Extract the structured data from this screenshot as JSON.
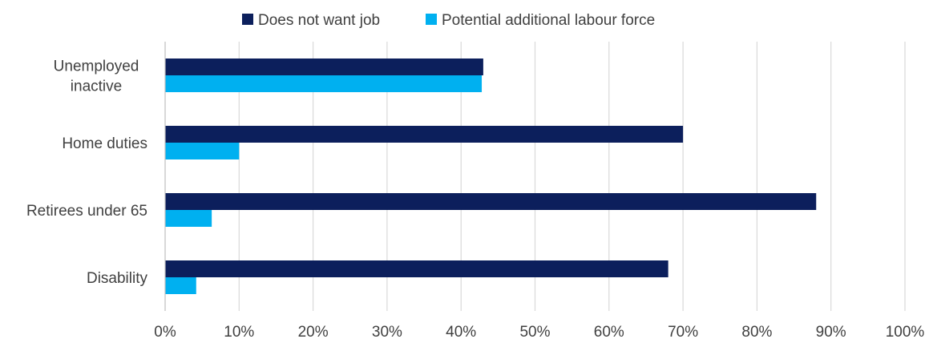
{
  "chart_data": {
    "type": "bar",
    "orientation": "horizontal",
    "categories": [
      [
        "Unemployed",
        "inactive"
      ],
      [
        "Home duties"
      ],
      [
        "Retirees under 65"
      ],
      [
        "Disability"
      ]
    ],
    "series": [
      {
        "name": "Does not want job",
        "color": "#0c1f5c",
        "values": [
          43,
          70,
          88,
          68
        ]
      },
      {
        "name": "Potential additional labour force",
        "color": "#00b0f0",
        "values": [
          42.8,
          10,
          6.3,
          4.2
        ]
      }
    ],
    "x_ticks": [
      "0%",
      "10%",
      "20%",
      "30%",
      "40%",
      "50%",
      "60%",
      "70%",
      "80%",
      "90%",
      "100%"
    ],
    "xlim": [
      0,
      100
    ],
    "grid": true,
    "legend_position": "top-center"
  }
}
